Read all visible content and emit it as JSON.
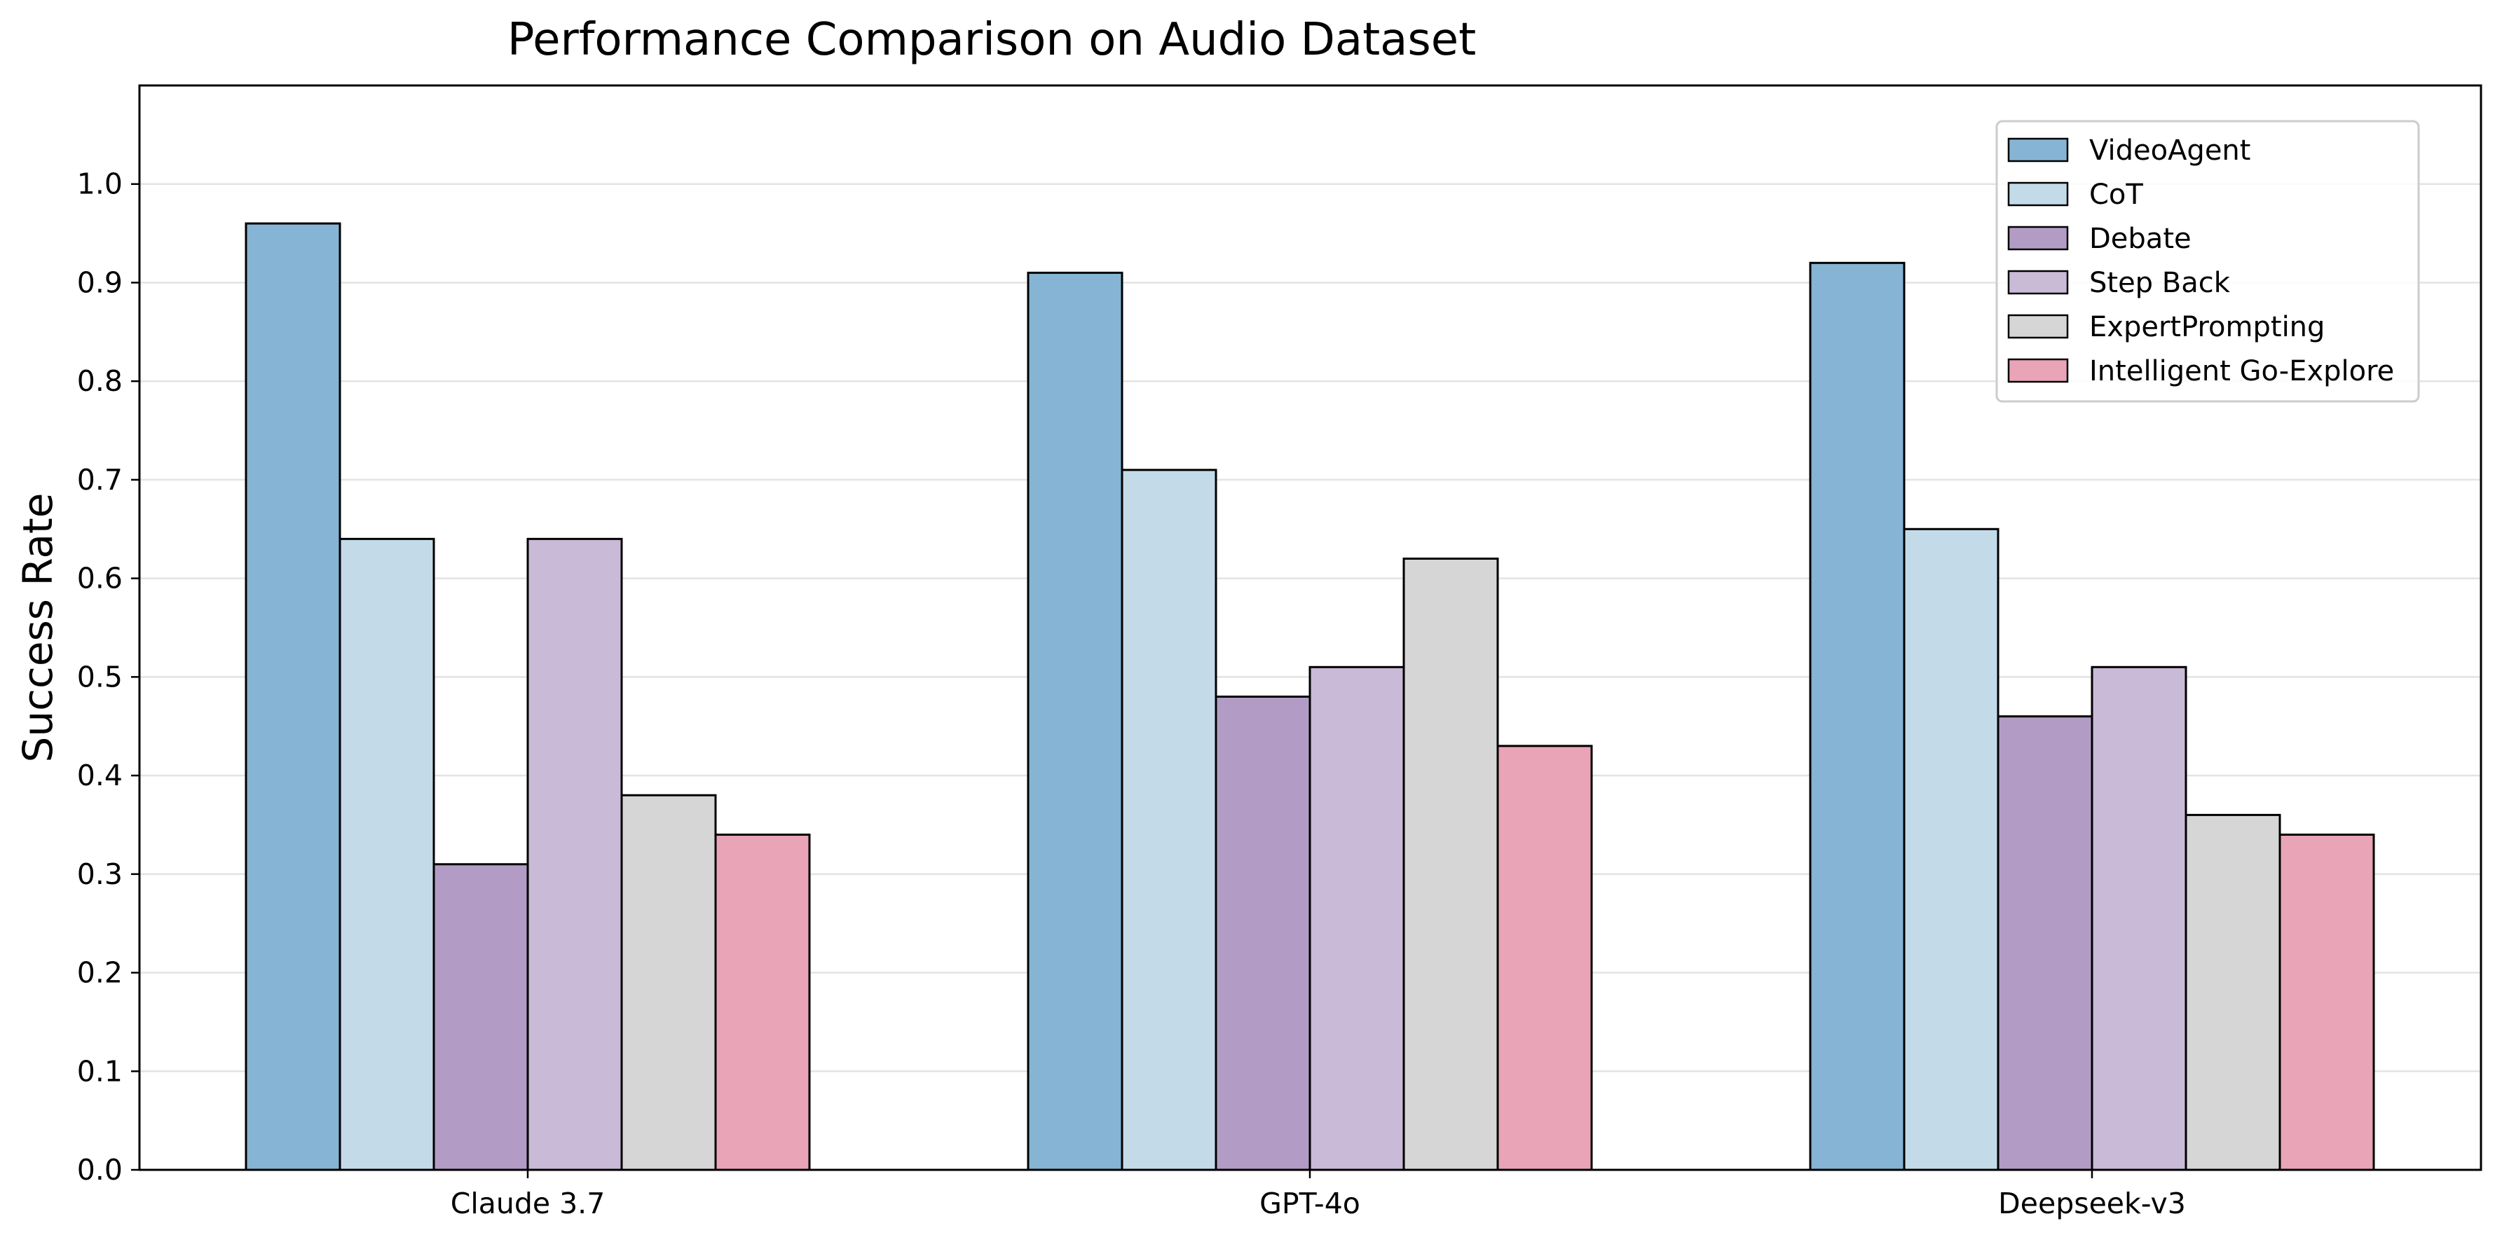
{
  "chart_data": {
    "type": "bar",
    "title": "Performance Comparison on Audio Dataset",
    "xlabel": "",
    "ylabel": "Success Rate",
    "ylim": [
      0,
      1.1
    ],
    "yticks": [
      "0.0",
      "0.1",
      "0.2",
      "0.3",
      "0.4",
      "0.5",
      "0.6",
      "0.7",
      "0.8",
      "0.9",
      "1.0"
    ],
    "grid": "horizontal",
    "legend_position": "top-right",
    "categories": [
      "Claude 3.7",
      "GPT-4o",
      "Deepseek-v3"
    ],
    "series": [
      {
        "name": "VideoAgent",
        "color": "#86b4d4",
        "values": [
          0.96,
          0.91,
          0.92
        ]
      },
      {
        "name": "CoT",
        "color": "#c3dbe9",
        "values": [
          0.64,
          0.71,
          0.65
        ]
      },
      {
        "name": "Debate",
        "color": "#b29cc5",
        "values": [
          0.31,
          0.48,
          0.46
        ]
      },
      {
        "name": "Step Back",
        "color": "#c9bad7",
        "values": [
          0.64,
          0.51,
          0.51
        ]
      },
      {
        "name": "ExpertPrompting",
        "color": "#d6d6d6",
        "values": [
          0.38,
          0.62,
          0.36
        ]
      },
      {
        "name": "Intelligent Go-Explore",
        "color": "#e9a4b8",
        "values": [
          0.34,
          0.43,
          0.34
        ]
      }
    ]
  }
}
